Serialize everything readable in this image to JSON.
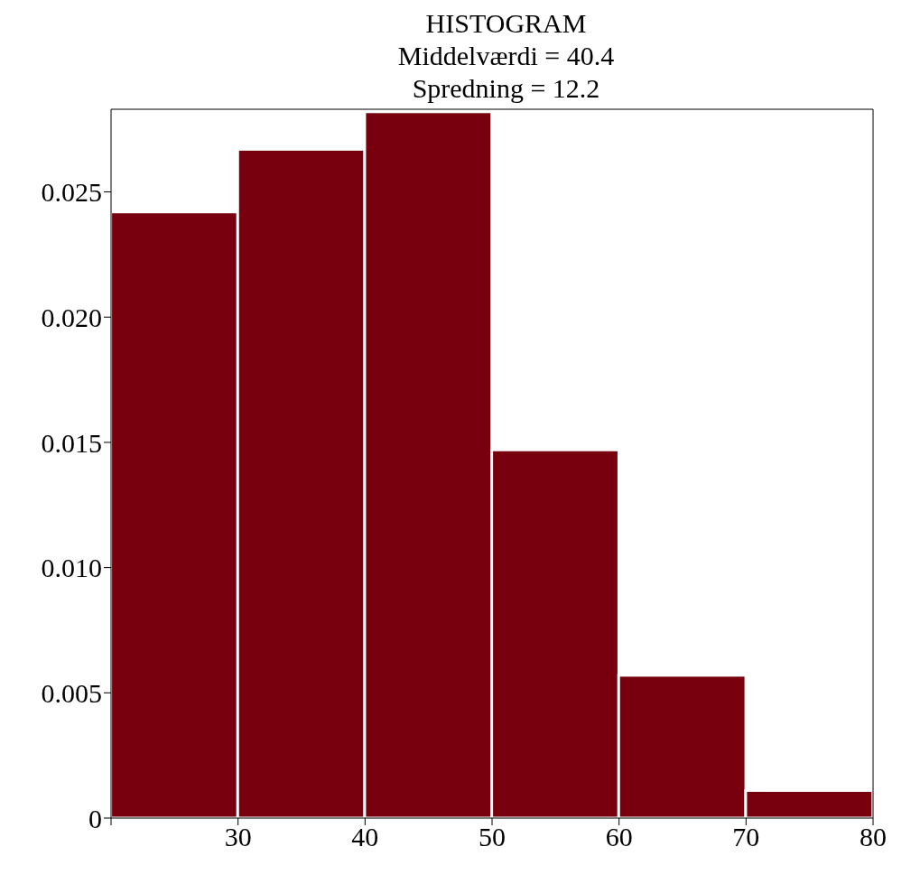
{
  "chart_data": {
    "type": "histogram",
    "title": "HISTOGRAM",
    "subtitle": "Middelværdi = 40.4\nSpredning = 12.2",
    "bins": [
      20,
      30,
      40,
      50,
      60,
      70,
      80
    ],
    "values": [
      0.0242,
      0.0267,
      0.0282,
      0.0147,
      0.0057,
      0.0011
    ],
    "color": "#78000e",
    "xlim": [
      20,
      80
    ],
    "xticks": [
      {
        "value": 20,
        "label": null
      },
      30,
      40,
      50,
      60,
      70,
      80
    ],
    "ylim": [
      0,
      0.0283
    ],
    "yticks": [
      0,
      0.005,
      {
        "value": 0.01,
        "label": "0.010"
      },
      0.015,
      {
        "value": 0.02,
        "label": "0.020"
      },
      0.025
    ]
  }
}
